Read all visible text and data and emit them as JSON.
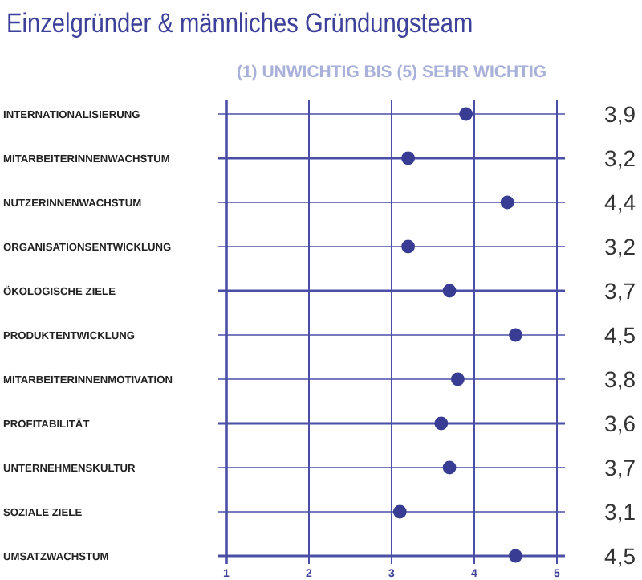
{
  "chart_data": {
    "type": "scatter",
    "title": "Einzelgründer & männliches Gründungsteam",
    "subtitle": "(1) UNWICHTIG BIS (5) SEHR WICHTIG",
    "categories": [
      "INTERNATIONALISIERUNG",
      "MITARBEITERINNENWACHSTUM",
      "NUTZERINNENWACHSTUM",
      "ORGANISATIONSENTWICKLUNG",
      "ÖKOLOGISCHE ZIELE",
      "PRODUKTENTWICKLUNG",
      "MITARBEITERINNENMOTIVATION",
      "PROFITABILITÄT",
      "UNTERNEHMENSKULTUR",
      "SOZIALE ZIELE",
      "UMSATZWACHSTUM"
    ],
    "values": [
      3.9,
      3.2,
      4.4,
      3.2,
      3.7,
      4.5,
      3.8,
      3.6,
      3.7,
      3.1,
      4.5
    ],
    "color": "#383c92",
    "orientation": "horizontal",
    "xlim": [
      1,
      5
    ],
    "xticks": [
      1,
      2,
      3,
      4,
      5
    ],
    "value_labels": [
      "3,9",
      "3,2",
      "4,4",
      "3,2",
      "3,7",
      "4,5",
      "3,8",
      "3,6",
      "3,7",
      "3,1",
      "4,5"
    ],
    "grid": true,
    "marker": "circle"
  }
}
